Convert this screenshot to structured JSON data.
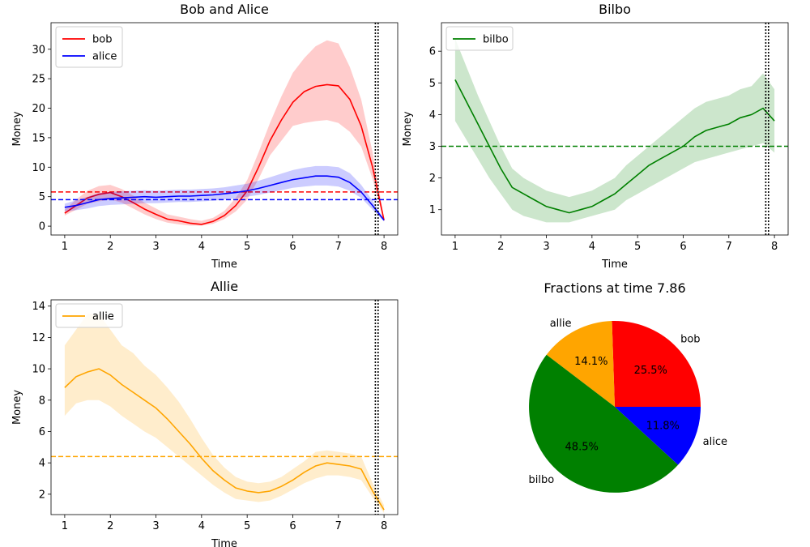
{
  "chart_data": [
    {
      "id": "bob_alice",
      "type": "line",
      "title": "Bob and Alice",
      "xlabel": "Time",
      "ylabel": "Money",
      "xlim": [
        0.7,
        8.3
      ],
      "ylim": [
        -1.5,
        34.5
      ],
      "xticks": [
        "1",
        "2",
        "3",
        "4",
        "5",
        "6",
        "7",
        "8"
      ],
      "xtick_values": [
        1,
        2,
        3,
        4,
        5,
        6,
        7,
        8
      ],
      "yticks": [
        "0",
        "5",
        "10",
        "15",
        "20",
        "25",
        "30"
      ],
      "ytick_values": [
        0,
        5,
        10,
        15,
        20,
        25,
        30
      ],
      "legend_position": "top-left",
      "vlines": [
        7.81,
        7.87
      ],
      "series": [
        {
          "name": "bob",
          "color": "#ff0000",
          "x": [
            1.0,
            1.25,
            1.5,
            1.75,
            2.0,
            2.25,
            2.5,
            2.75,
            3.0,
            3.25,
            3.5,
            3.75,
            4.0,
            4.25,
            4.5,
            4.75,
            5.0,
            5.25,
            5.5,
            5.75,
            6.0,
            6.25,
            6.5,
            6.75,
            7.0,
            7.25,
            7.5,
            7.75,
            8.0
          ],
          "y": [
            2.2,
            3.5,
            4.8,
            5.4,
            5.7,
            5.0,
            4.0,
            2.9,
            2.0,
            1.2,
            0.9,
            0.5,
            0.3,
            0.8,
            1.8,
            3.5,
            6.0,
            10.0,
            14.5,
            18.0,
            21.0,
            22.8,
            23.7,
            24.0,
            23.8,
            21.5,
            17.0,
            10.0,
            1.0
          ],
          "lower": [
            1.8,
            2.8,
            3.8,
            4.2,
            4.5,
            4.0,
            3.0,
            2.0,
            1.2,
            0.6,
            0.3,
            0.1,
            0.1,
            0.4,
            1.2,
            2.5,
            4.5,
            8.0,
            12.0,
            14.5,
            17.0,
            17.5,
            17.8,
            18.0,
            17.5,
            16.0,
            13.5,
            8.0,
            0.8
          ],
          "upper": [
            2.8,
            4.5,
            6.0,
            6.8,
            7.0,
            6.3,
            5.2,
            4.0,
            3.0,
            2.0,
            1.6,
            1.2,
            0.9,
            1.4,
            2.6,
            4.8,
            7.8,
            12.5,
            17.5,
            22.0,
            26.0,
            28.5,
            30.5,
            31.5,
            31.0,
            27.0,
            21.5,
            12.5,
            1.3
          ],
          "mean": 5.8
        },
        {
          "name": "alice",
          "color": "#0000ff",
          "x": [
            1.0,
            1.25,
            1.5,
            1.75,
            2.0,
            2.25,
            2.5,
            2.75,
            3.0,
            3.25,
            3.5,
            3.75,
            4.0,
            4.25,
            4.5,
            4.75,
            5.0,
            5.25,
            5.5,
            5.75,
            6.0,
            6.25,
            6.5,
            6.75,
            7.0,
            7.25,
            7.5,
            7.75,
            8.0
          ],
          "y": [
            3.2,
            3.5,
            4.0,
            4.5,
            4.7,
            4.8,
            4.9,
            5.0,
            4.9,
            5.0,
            5.1,
            5.1,
            5.2,
            5.3,
            5.5,
            5.7,
            6.0,
            6.4,
            6.9,
            7.4,
            7.9,
            8.2,
            8.5,
            8.5,
            8.3,
            7.4,
            5.8,
            3.5,
            1.0
          ],
          "lower": [
            2.5,
            2.7,
            3.0,
            3.4,
            3.6,
            3.7,
            3.8,
            3.9,
            3.9,
            4.0,
            4.1,
            4.1,
            4.2,
            4.3,
            4.5,
            4.7,
            5.0,
            5.3,
            5.7,
            6.1,
            6.5,
            6.7,
            6.9,
            6.9,
            6.7,
            6.0,
            4.8,
            2.8,
            0.8
          ],
          "upper": [
            3.8,
            4.4,
            5.0,
            5.6,
            5.8,
            5.9,
            6.0,
            6.1,
            6.0,
            6.1,
            6.2,
            6.2,
            6.3,
            6.4,
            6.6,
            6.9,
            7.2,
            7.7,
            8.3,
            8.9,
            9.5,
            9.9,
            10.2,
            10.2,
            10.0,
            9.0,
            7.0,
            4.3,
            1.2
          ],
          "mean": 4.5
        }
      ]
    },
    {
      "id": "bilbo",
      "type": "line",
      "title": "Bilbo",
      "xlabel": "Time",
      "ylabel": "Money",
      "xlim": [
        0.7,
        8.3
      ],
      "ylim": [
        0.2,
        6.9
      ],
      "xticks": [
        "1",
        "2",
        "3",
        "4",
        "5",
        "6",
        "7",
        "8"
      ],
      "xtick_values": [
        1,
        2,
        3,
        4,
        5,
        6,
        7,
        8
      ],
      "yticks": [
        "1",
        "2",
        "3",
        "4",
        "5",
        "6"
      ],
      "ytick_values": [
        1,
        2,
        3,
        4,
        5,
        6
      ],
      "legend_position": "top-left",
      "vlines": [
        7.81,
        7.87
      ],
      "series": [
        {
          "name": "bilbo",
          "color": "#008000",
          "x": [
            1.0,
            1.25,
            1.5,
            1.75,
            2.0,
            2.25,
            2.5,
            2.75,
            3.0,
            3.25,
            3.5,
            3.75,
            4.0,
            4.25,
            4.5,
            4.75,
            5.0,
            5.25,
            5.5,
            5.75,
            6.0,
            6.25,
            6.5,
            6.75,
            7.0,
            7.25,
            7.5,
            7.75,
            8.0
          ],
          "y": [
            5.1,
            4.4,
            3.7,
            3.0,
            2.3,
            1.7,
            1.5,
            1.3,
            1.1,
            1.0,
            0.9,
            1.0,
            1.1,
            1.3,
            1.5,
            1.8,
            2.1,
            2.4,
            2.6,
            2.8,
            3.0,
            3.3,
            3.5,
            3.6,
            3.7,
            3.9,
            4.0,
            4.2,
            3.8
          ],
          "lower": [
            3.8,
            3.2,
            2.6,
            2.0,
            1.5,
            1.0,
            0.8,
            0.7,
            0.6,
            0.6,
            0.6,
            0.7,
            0.8,
            0.9,
            1.0,
            1.3,
            1.5,
            1.7,
            1.9,
            2.1,
            2.3,
            2.5,
            2.6,
            2.7,
            2.8,
            2.9,
            3.0,
            3.1,
            2.8
          ],
          "upper": [
            6.4,
            5.5,
            4.6,
            3.8,
            3.0,
            2.3,
            2.0,
            1.8,
            1.6,
            1.5,
            1.4,
            1.5,
            1.6,
            1.8,
            2.0,
            2.4,
            2.7,
            3.0,
            3.3,
            3.6,
            3.9,
            4.2,
            4.4,
            4.5,
            4.6,
            4.8,
            4.9,
            5.3,
            4.8
          ],
          "mean": 3.0
        }
      ]
    },
    {
      "id": "allie",
      "type": "line",
      "title": "Allie",
      "xlabel": "Time",
      "ylabel": "Money",
      "xlim": [
        0.7,
        8.3
      ],
      "ylim": [
        0.7,
        14.4
      ],
      "xticks": [
        "1",
        "2",
        "3",
        "4",
        "5",
        "6",
        "7",
        "8"
      ],
      "xtick_values": [
        1,
        2,
        3,
        4,
        5,
        6,
        7,
        8
      ],
      "yticks": [
        "2",
        "4",
        "6",
        "8",
        "10",
        "12",
        "14"
      ],
      "ytick_values": [
        2,
        4,
        6,
        8,
        10,
        12,
        14
      ],
      "legend_position": "top-left",
      "vlines": [
        7.81,
        7.87
      ],
      "series": [
        {
          "name": "allie",
          "color": "#ffa500",
          "x": [
            1.0,
            1.25,
            1.5,
            1.75,
            2.0,
            2.25,
            2.5,
            2.75,
            3.0,
            3.25,
            3.5,
            3.75,
            4.0,
            4.25,
            4.5,
            4.75,
            5.0,
            5.25,
            5.5,
            5.75,
            6.0,
            6.25,
            6.5,
            6.75,
            7.0,
            7.25,
            7.5,
            7.75,
            8.0
          ],
          "y": [
            8.8,
            9.5,
            9.8,
            10.0,
            9.6,
            9.0,
            8.5,
            8.0,
            7.5,
            6.8,
            6.0,
            5.2,
            4.3,
            3.5,
            2.9,
            2.4,
            2.2,
            2.1,
            2.2,
            2.5,
            2.9,
            3.4,
            3.8,
            4.0,
            3.9,
            3.8,
            3.6,
            2.2,
            1.0
          ],
          "lower": [
            7.0,
            7.8,
            8.0,
            8.0,
            7.6,
            7.0,
            6.5,
            6.0,
            5.6,
            5.0,
            4.4,
            3.8,
            3.2,
            2.6,
            2.1,
            1.7,
            1.6,
            1.5,
            1.6,
            1.9,
            2.3,
            2.7,
            3.0,
            3.2,
            3.2,
            3.1,
            2.9,
            1.8,
            0.8
          ],
          "upper": [
            11.5,
            12.5,
            13.5,
            13.5,
            12.5,
            11.5,
            11.0,
            10.2,
            9.6,
            8.8,
            7.9,
            6.8,
            5.6,
            4.5,
            3.7,
            3.1,
            2.8,
            2.7,
            2.8,
            3.1,
            3.6,
            4.1,
            4.7,
            4.8,
            4.7,
            4.6,
            4.4,
            2.7,
            1.3
          ],
          "mean": 4.4
        }
      ]
    },
    {
      "id": "fractions",
      "type": "pie",
      "title": "Fractions at time 7.86",
      "slices": [
        {
          "label": "bob",
          "value": 25.5,
          "pct_label": "25.5%",
          "color": "#ff0000"
        },
        {
          "label": "allie",
          "value": 14.1,
          "pct_label": "14.1%",
          "color": "#ffa500"
        },
        {
          "label": "bilbo",
          "value": 48.5,
          "pct_label": "48.5%",
          "color": "#008000"
        },
        {
          "label": "alice",
          "value": 11.8,
          "pct_label": "11.8%",
          "color": "#0000ff"
        }
      ]
    }
  ]
}
